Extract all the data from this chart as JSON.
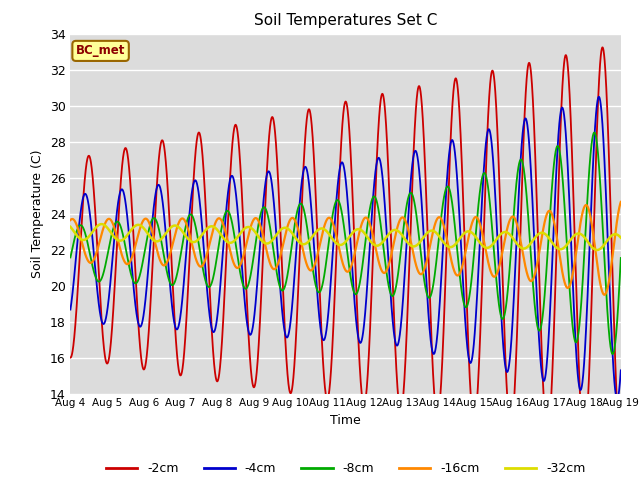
{
  "title": "Soil Temperatures Set C",
  "xlabel": "Time",
  "ylabel": "Soil Temperature (C)",
  "ylim": [
    14,
    34
  ],
  "xlim": [
    0,
    15
  ],
  "x_tick_labels": [
    "Aug 4",
    "Aug 5",
    "Aug 6",
    "Aug 7",
    "Aug 8",
    "Aug 9",
    "Aug 10",
    "Aug 11",
    "Aug 12",
    "Aug 13",
    "Aug 14",
    "Aug 15",
    "Aug 16",
    "Aug 17",
    "Aug 18",
    "Aug 19"
  ],
  "annotation": "BC_met",
  "fig_bg": "#ffffff",
  "plot_bg": "#dcdcdc",
  "line_colors": {
    "-2cm": "#cc0000",
    "-4cm": "#0000cc",
    "-8cm": "#00aa00",
    "-16cm": "#ff8800",
    "-32cm": "#dddd00"
  },
  "legend_labels": [
    "-2cm",
    "-4cm",
    "-8cm",
    "-16cm",
    "-32cm"
  ]
}
